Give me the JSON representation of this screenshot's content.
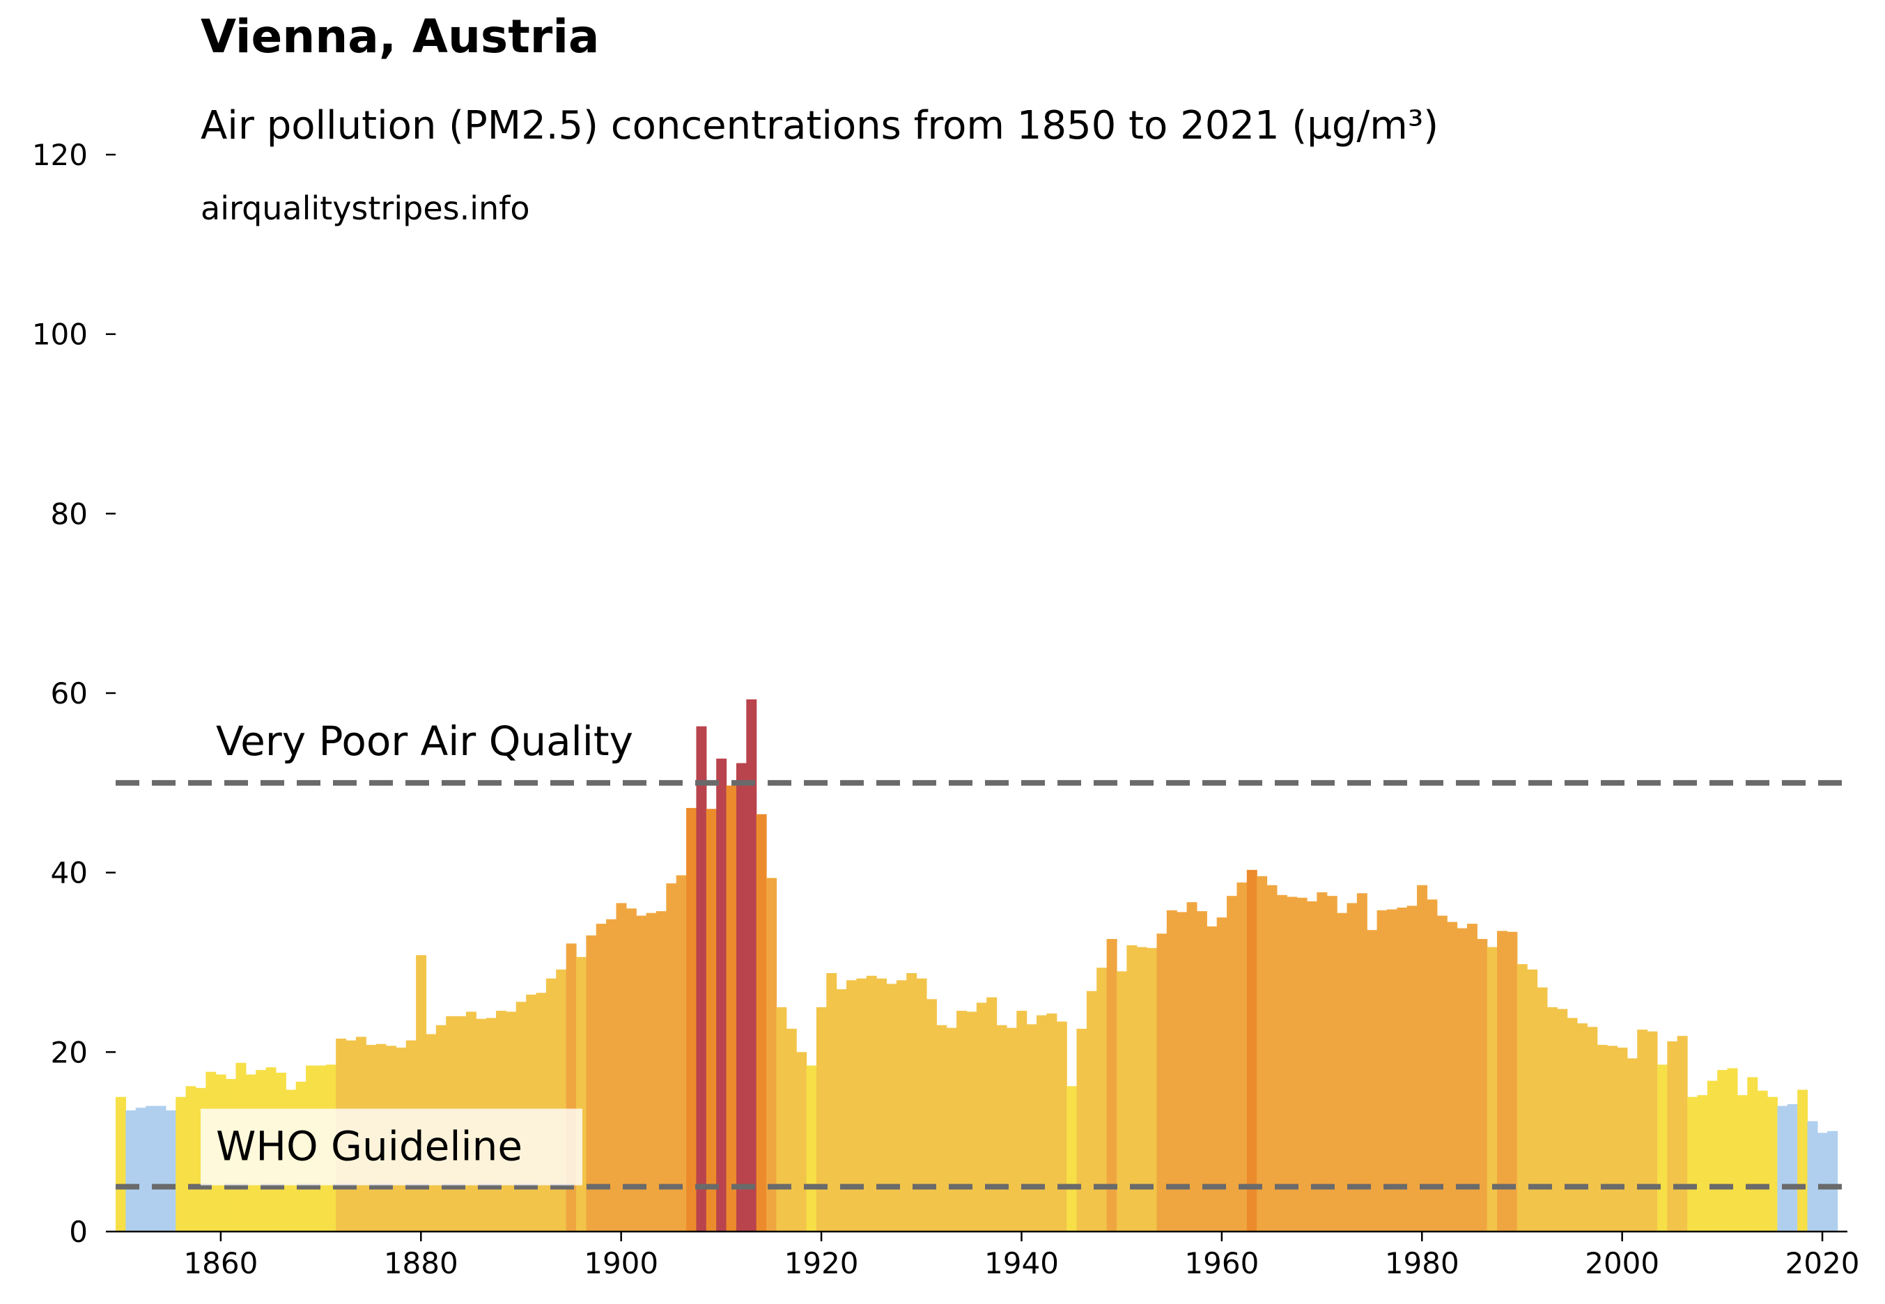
{
  "chart_data": {
    "type": "bar",
    "title": "Vienna, Austria",
    "subtitle": "Air pollution (PM2.5) concentrations from 1850 to 2021 (µg/m³)",
    "source": "airqualitystripes.info",
    "x_start": 1850,
    "x_end": 2021,
    "xlim": [
      1849.5,
      2022.5
    ],
    "ylim": [
      0,
      120
    ],
    "x_ticks": [
      1860,
      1880,
      1900,
      1920,
      1940,
      1960,
      1980,
      2000,
      2020
    ],
    "y_ticks": [
      0,
      20,
      40,
      60,
      80,
      100,
      120
    ],
    "grid": false,
    "values": [
      15.0,
      13.5,
      13.8,
      14.0,
      14.0,
      13.5,
      15.0,
      16.2,
      16.0,
      17.8,
      17.5,
      17.0,
      18.8,
      17.5,
      18.0,
      18.3,
      17.7,
      15.8,
      16.7,
      18.5,
      18.5,
      18.6,
      21.5,
      21.3,
      21.7,
      20.8,
      20.9,
      20.7,
      20.5,
      21.3,
      30.8,
      22.0,
      23.0,
      24.0,
      24.0,
      24.5,
      23.7,
      23.8,
      24.6,
      24.5,
      25.6,
      26.4,
      26.6,
      28.2,
      29.2,
      32.1,
      30.6,
      33.0,
      34.3,
      34.8,
      36.6,
      36.0,
      35.2,
      35.5,
      35.7,
      38.8,
      39.7,
      47.2,
      56.3,
      47.1,
      52.7,
      49.7,
      52.2,
      59.3,
      46.5,
      39.4,
      25.0,
      22.6,
      20.0,
      18.5,
      25.0,
      28.8,
      27.0,
      28.0,
      28.2,
      28.5,
      28.2,
      27.6,
      28.0,
      28.8,
      28.2,
      25.9,
      23.0,
      22.7,
      24.6,
      24.5,
      25.5,
      26.1,
      23.0,
      22.7,
      24.6,
      23.1,
      24.1,
      24.3,
      23.4,
      16.2,
      22.6,
      26.8,
      29.4,
      32.6,
      29.0,
      31.9,
      31.7,
      31.6,
      33.2,
      35.8,
      35.6,
      36.7,
      35.7,
      34.0,
      35.0,
      37.4,
      38.9,
      40.3,
      39.6,
      38.6,
      37.5,
      37.3,
      37.2,
      36.8,
      37.8,
      37.4,
      35.5,
      36.6,
      37.7,
      33.6,
      35.8,
      35.9,
      36.1,
      36.3,
      38.6,
      37.0,
      35.2,
      34.5,
      33.8,
      34.3,
      32.6,
      31.7,
      33.5,
      33.4,
      29.8,
      29.2,
      27.2,
      25.0,
      24.8,
      23.8,
      23.2,
      22.8,
      20.8,
      20.7,
      20.5,
      19.3,
      22.5,
      22.3,
      18.6,
      21.2,
      21.8,
      15.0,
      15.2,
      16.8,
      18.0,
      18.2,
      15.2,
      17.2,
      15.7,
      15.0,
      14.0,
      14.2,
      15.8,
      12.3,
      11.0,
      11.2
    ],
    "color_bands": [
      {
        "max": 15,
        "color": "#b0cfee"
      },
      {
        "max": 19,
        "color": "#f7df47"
      },
      {
        "max": 32,
        "color": "#f2c44a"
      },
      {
        "max": 40,
        "color": "#f0a640"
      },
      {
        "max": 50,
        "color": "#ec8b2c"
      },
      {
        "max": 1000,
        "color": "#b9444d"
      }
    ],
    "annotations": [
      {
        "label": "Very Poor Air Quality",
        "y": 50
      },
      {
        "label": "WHO Guideline",
        "y": 5
      }
    ],
    "reference_line_color": "#6a6a6a"
  }
}
